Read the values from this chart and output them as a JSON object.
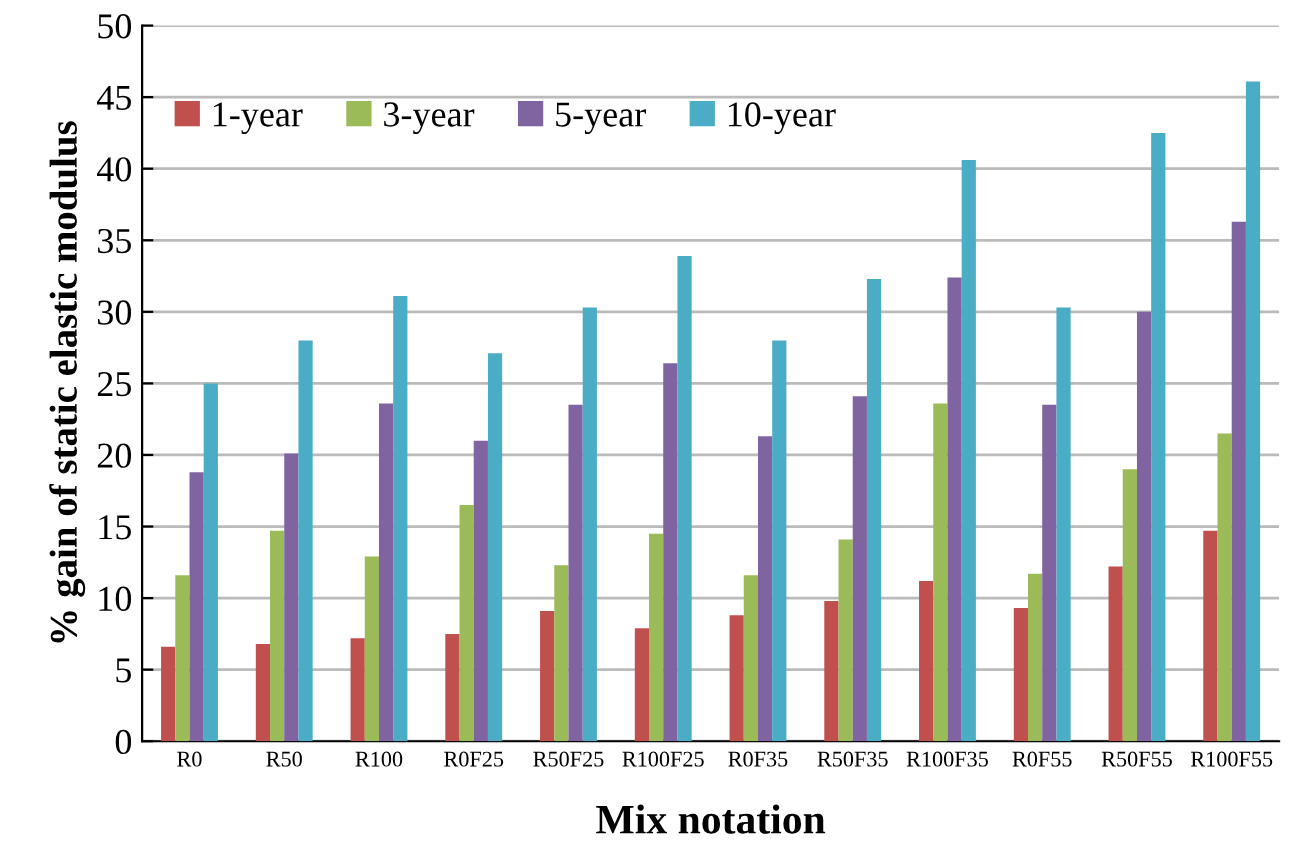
{
  "chart_data": {
    "type": "bar",
    "xlabel": "Mix notation",
    "ylabel": "% gain of static elastic modulus",
    "categories": [
      "R0",
      "R50",
      "R100",
      "R0F25",
      "R50F25",
      "R100F25",
      "R0F35",
      "R50F35",
      "R100F35",
      "R0F55",
      "R50F55",
      "R100F55"
    ],
    "series": [
      {
        "name": "1-year",
        "color": "#c0504d",
        "values": [
          6.6,
          6.8,
          7.2,
          7.5,
          9.1,
          7.9,
          8.8,
          9.8,
          11.2,
          9.3,
          12.2,
          14.7
        ]
      },
      {
        "name": "3-year",
        "color": "#9bbb59",
        "values": [
          11.6,
          14.7,
          12.9,
          16.5,
          12.3,
          14.5,
          11.6,
          14.1,
          23.6,
          11.7,
          19.0,
          21.5
        ]
      },
      {
        "name": "5-year",
        "color": "#8064a2",
        "values": [
          18.8,
          20.1,
          23.6,
          21.0,
          23.5,
          26.4,
          21.3,
          24.1,
          32.4,
          23.5,
          30.0,
          36.3
        ]
      },
      {
        "name": "10-year",
        "color": "#4bacc6",
        "values": [
          25.0,
          28.0,
          31.1,
          27.1,
          30.3,
          33.9,
          28.0,
          32.3,
          40.6,
          30.3,
          42.5,
          46.1
        ]
      }
    ],
    "ylim": [
      0,
      50
    ],
    "yticks": [
      0,
      5,
      10,
      15,
      20,
      25,
      30,
      35,
      40,
      45,
      50
    ],
    "grid": "y",
    "legend": "top left"
  }
}
